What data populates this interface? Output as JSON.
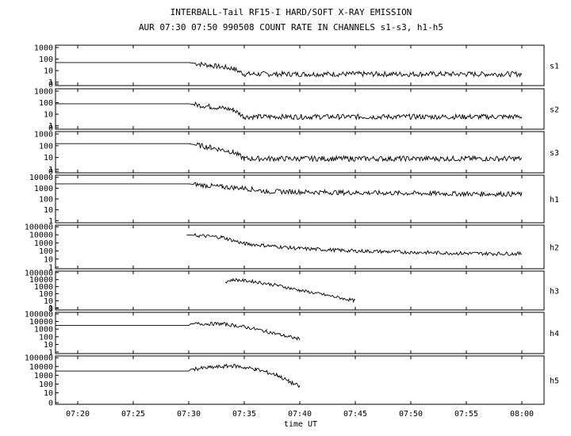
{
  "title": "INTERBALL-Tail RF15-I HARD/SOFT X-RAY EMISSION",
  "subtitle": "AUR 07:30 07:50 990508  COUNT RATE IN CHANNELS s1-s3, h1-h5",
  "chart_data": {
    "type": "line",
    "xlabel": "time UT",
    "x_range": [
      "07:18",
      "08:02"
    ],
    "x_ticks": [
      "07:20",
      "07:25",
      "07:30",
      "07:35",
      "07:40",
      "07:45",
      "07:50",
      "07:55",
      "08:00"
    ],
    "series": [
      {
        "name": "s1",
        "y_ticks": [
          "1000",
          "100",
          "10",
          "1",
          "0"
        ],
        "y_log_range": [
          -0.3,
          3.2
        ],
        "points": [
          [
            "07:18",
            50
          ],
          [
            "07:30",
            50
          ],
          [
            "07:32",
            28
          ],
          [
            "07:34",
            15
          ],
          [
            "07:35",
            5
          ],
          [
            "07:45",
            5
          ],
          [
            "07:55",
            5
          ],
          [
            "08:00",
            5
          ]
        ]
      },
      {
        "name": "s2",
        "y_ticks": [
          "1000",
          "100",
          "10",
          "1",
          "0"
        ],
        "y_log_range": [
          -0.3,
          3.2
        ],
        "points": [
          [
            "07:18",
            80
          ],
          [
            "07:30",
            80
          ],
          [
            "07:32",
            45
          ],
          [
            "07:34",
            25
          ],
          [
            "07:35",
            6
          ],
          [
            "07:45",
            6
          ],
          [
            "07:55",
            6
          ],
          [
            "08:00",
            6
          ]
        ]
      },
      {
        "name": "s3",
        "y_ticks": [
          "1000",
          "100",
          "10",
          "1",
          "0"
        ],
        "y_log_range": [
          -0.3,
          3.2
        ],
        "points": [
          [
            "07:18",
            150
          ],
          [
            "07:30",
            150
          ],
          [
            "07:32",
            70
          ],
          [
            "07:34",
            30
          ],
          [
            "07:35",
            8
          ],
          [
            "07:45",
            8
          ],
          [
            "07:55",
            8
          ],
          [
            "08:00",
            8
          ]
        ]
      },
      {
        "name": "h1",
        "y_ticks": [
          "10000",
          "1000",
          "100",
          "10",
          "1"
        ],
        "y_log_range": [
          -0.2,
          4.2
        ],
        "points": [
          [
            "07:18",
            2500
          ],
          [
            "07:30",
            2500
          ],
          [
            "07:33",
            1300
          ],
          [
            "07:35",
            1000
          ],
          [
            "07:37",
            500
          ],
          [
            "07:45",
            380
          ],
          [
            "07:55",
            300
          ],
          [
            "08:00",
            280
          ]
        ]
      },
      {
        "name": "h2",
        "y_ticks": [
          "100000",
          "10000",
          "1000",
          "100",
          "10",
          "1"
        ],
        "y_log_range": [
          -0.2,
          5.2
        ],
        "points": [
          [
            "07:29.8",
            10000
          ],
          [
            "07:33",
            5000
          ],
          [
            "07:35",
            800
          ],
          [
            "07:40",
            200
          ],
          [
            "07:45",
            100
          ],
          [
            "07:50",
            70
          ],
          [
            "07:55",
            50
          ],
          [
            "08:00",
            45
          ]
        ]
      },
      {
        "name": "h3",
        "y_ticks": [
          "100000",
          "10000",
          "1000",
          "100",
          "10",
          "1",
          "0"
        ],
        "y_log_range": [
          -0.3,
          5.2
        ],
        "points": [
          [
            "07:33.3",
            5000
          ],
          [
            "07:34",
            10000
          ],
          [
            "07:36",
            5000
          ],
          [
            "07:38",
            1500
          ],
          [
            "07:40",
            300
          ],
          [
            "07:42",
            80
          ],
          [
            "07:44",
            20
          ],
          [
            "07:45",
            10
          ]
        ]
      },
      {
        "name": "h4",
        "y_ticks": [
          "100000",
          "10000",
          "1000",
          "100",
          "10",
          "1"
        ],
        "y_log_range": [
          -0.2,
          5.2
        ],
        "points": [
          [
            "07:18",
            3000
          ],
          [
            "07:30",
            3000
          ],
          [
            "07:30.2",
            5000
          ],
          [
            "07:33",
            5000
          ],
          [
            "07:35",
            2000
          ],
          [
            "07:37",
            500
          ],
          [
            "07:39",
            100
          ],
          [
            "07:40",
            50
          ]
        ]
      },
      {
        "name": "h5",
        "y_ticks": [
          "100000",
          "10000",
          "1000",
          "100",
          "10",
          "0"
        ],
        "y_log_range": [
          -0.3,
          5.2
        ],
        "points": [
          [
            "07:18",
            3000
          ],
          [
            "07:30",
            3000
          ],
          [
            "07:30.2",
            5000
          ],
          [
            "07:34",
            12000
          ],
          [
            "07:36",
            5000
          ],
          [
            "07:38",
            1000
          ],
          [
            "07:39",
            200
          ],
          [
            "07:40",
            50
          ]
        ]
      }
    ]
  }
}
